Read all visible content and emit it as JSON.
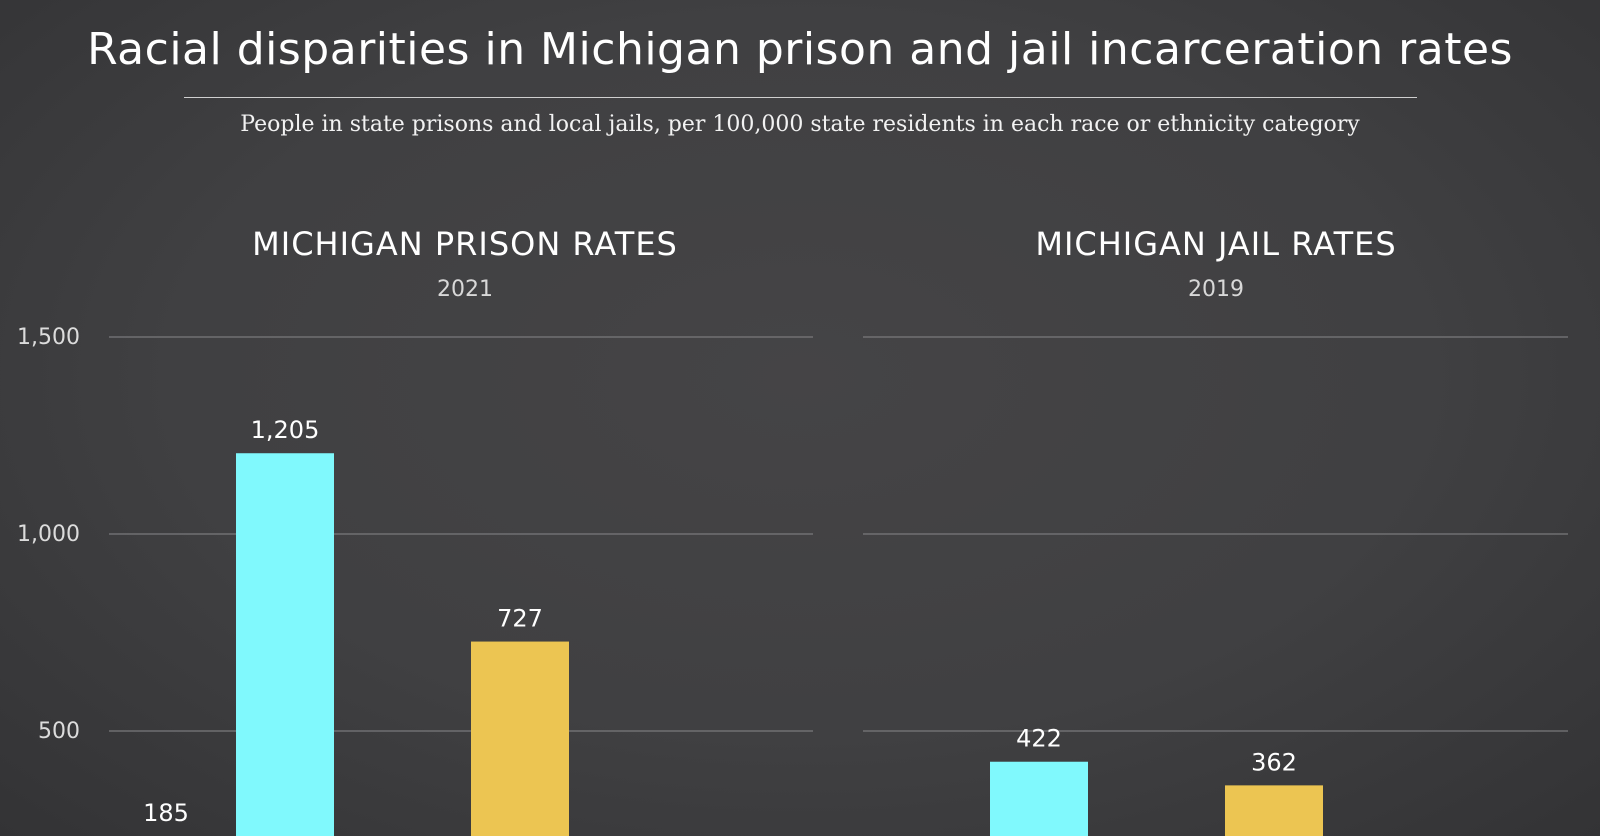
{
  "title": "Racial disparities in Michigan prison and jail incarceration rates",
  "subtitle": "People in state prisons and local jails, per 100,000 state residents in each race or ethnicity category",
  "chart_data": [
    {
      "type": "bar",
      "title": "MICHIGAN PRISON RATES",
      "subtitle": "2021",
      "ylim": [
        0,
        1500
      ],
      "yticks": [
        "500",
        "1,000",
        "1,500"
      ],
      "ytick_values": [
        500,
        1000,
        1500
      ],
      "grid": true,
      "bars": [
        {
          "value": 185,
          "label": "185",
          "color": "#ffffff"
        },
        {
          "value": 1205,
          "label": "1,205",
          "color": "#80f9fd"
        },
        {
          "value": 727,
          "label": "727",
          "color": "#ecc552"
        }
      ]
    },
    {
      "type": "bar",
      "title": "MICHIGAN JAIL RATES",
      "subtitle": "2019",
      "ylim": [
        0,
        1500
      ],
      "ytick_values": [
        500,
        1000,
        1500
      ],
      "grid": true,
      "bars": [
        {
          "value": 422,
          "label": "422",
          "color": "#80f9fd"
        },
        {
          "value": 362,
          "label": "362",
          "color": "#ecc552"
        }
      ]
    }
  ]
}
